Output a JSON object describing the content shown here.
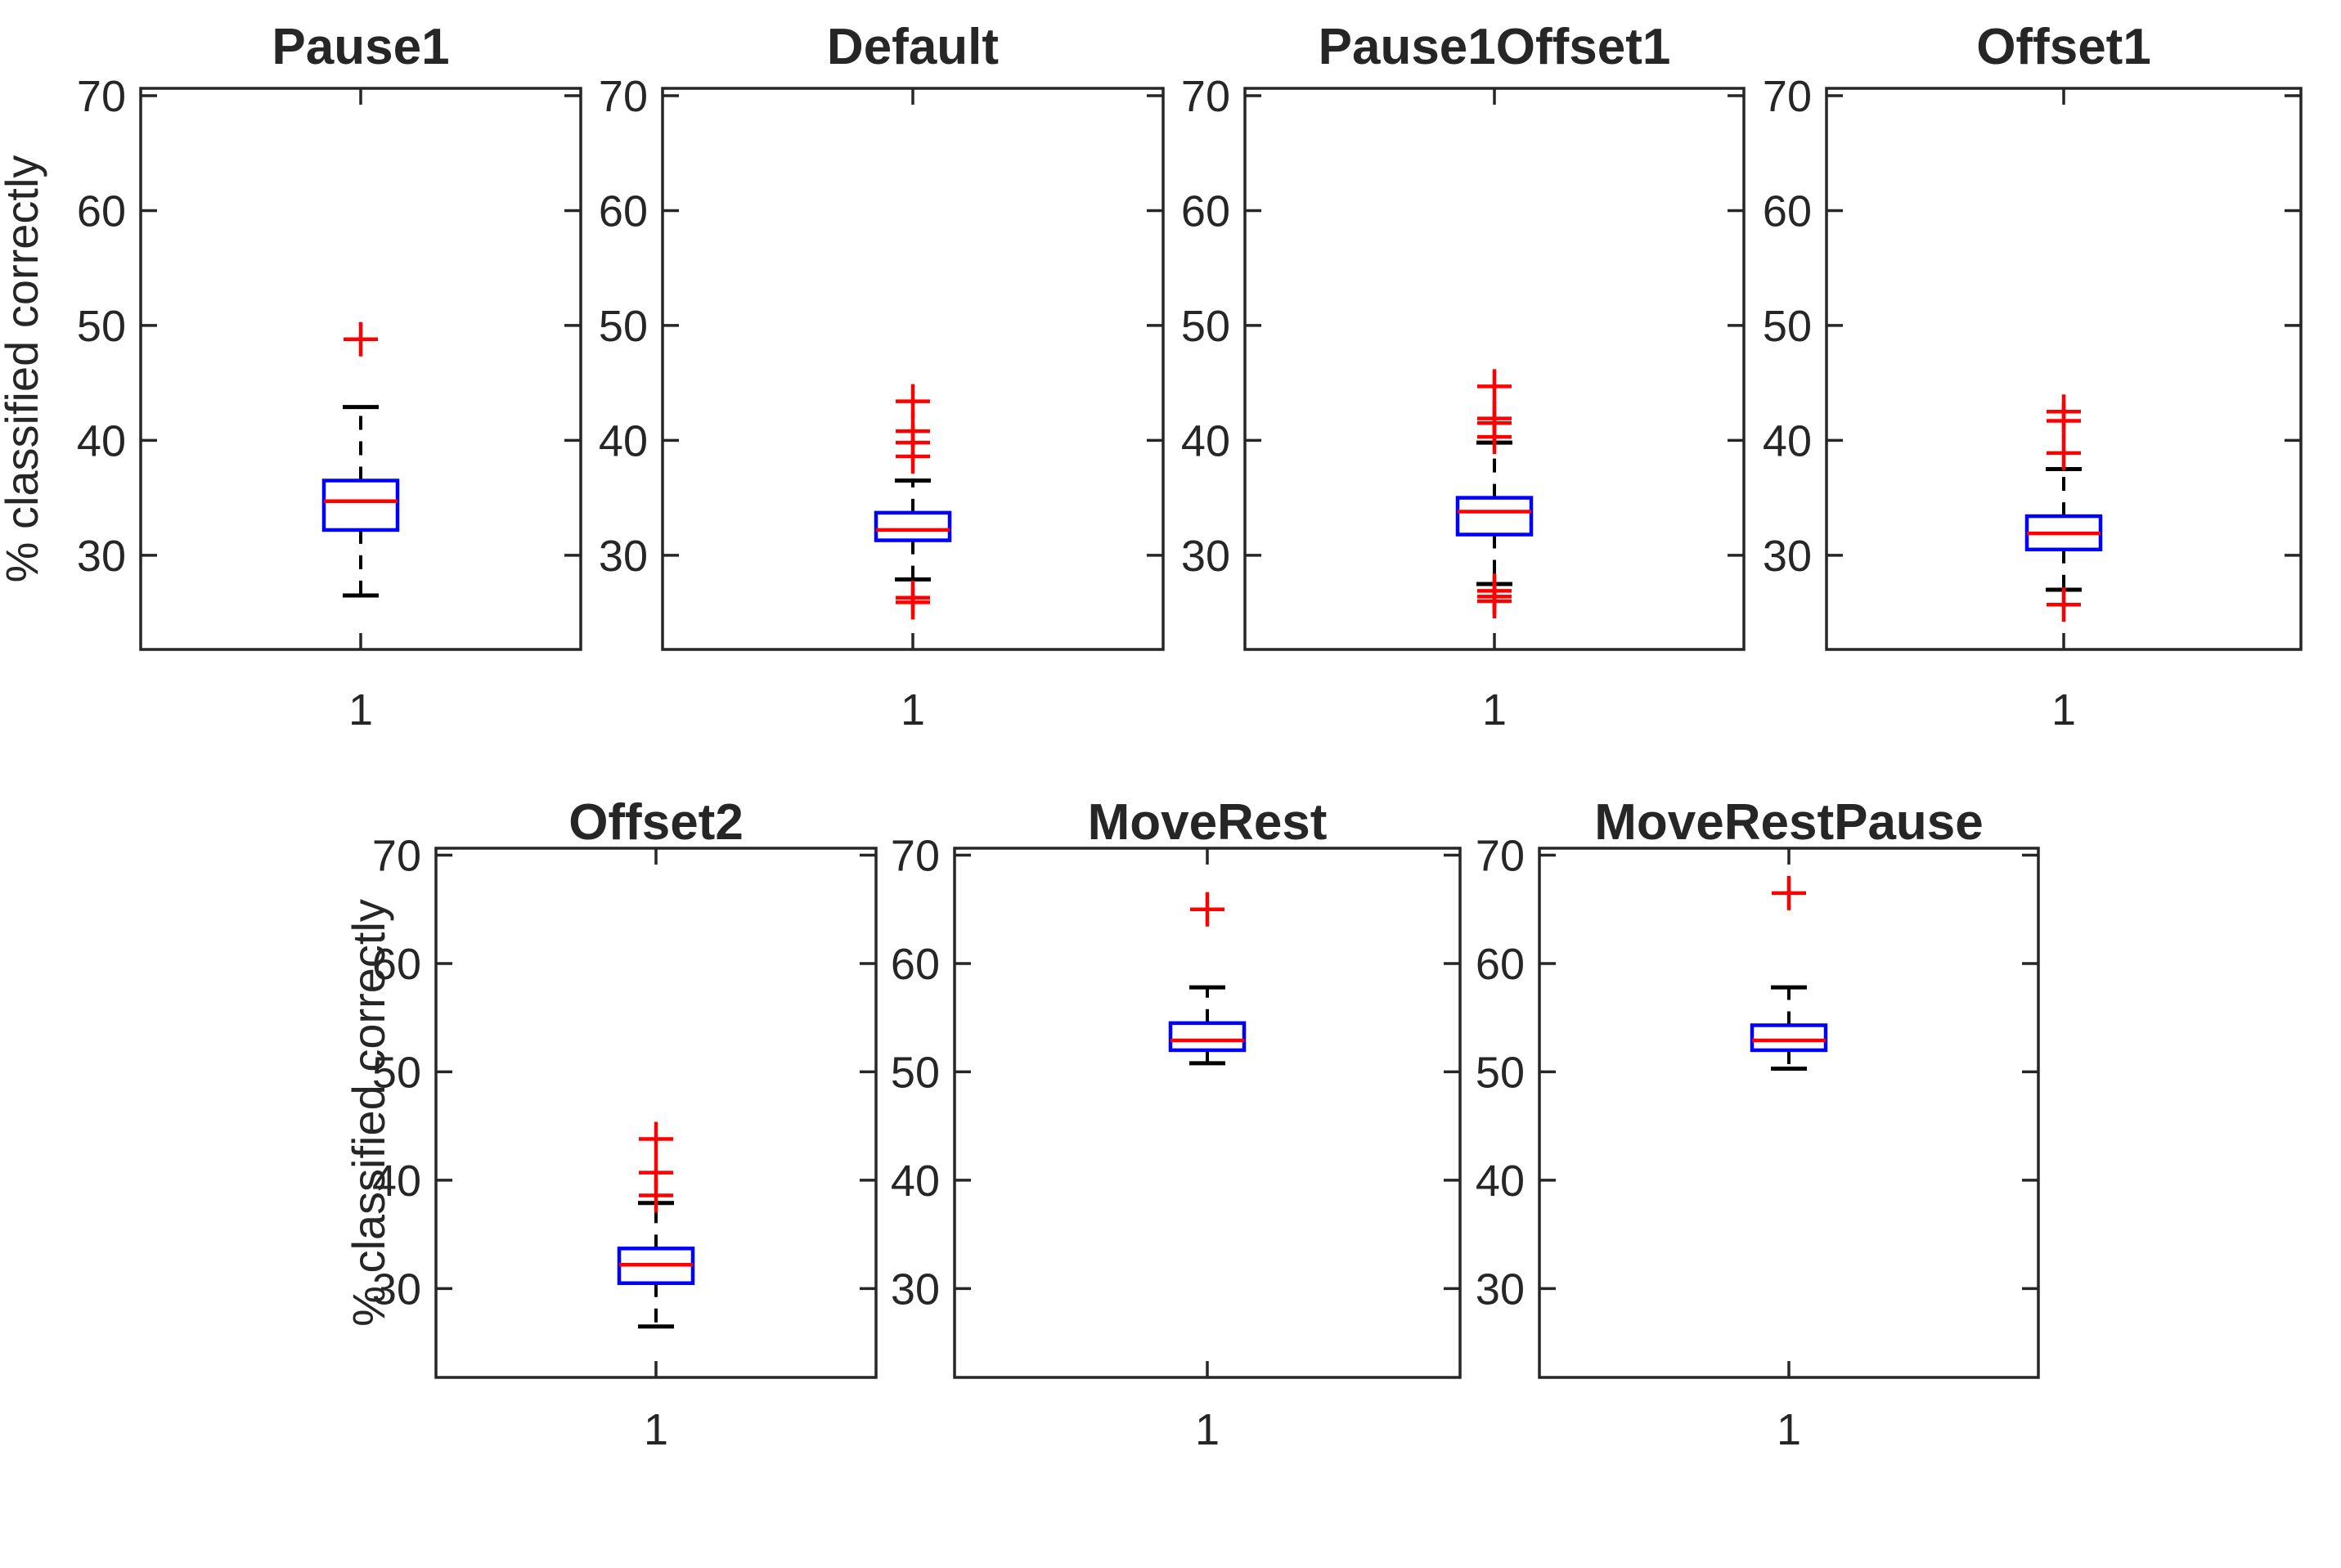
{
  "figure": {
    "background": "#ffffff",
    "ylabel": "% classified correctly",
    "x_tick_label": "1"
  },
  "colors": {
    "box": "#0000ff",
    "median": "#ff0000",
    "outlier": "#ff0000",
    "whisker": "#000000",
    "axis": "#262626",
    "background": "#ffffff"
  },
  "chart_data": {
    "type": "boxplot",
    "title": "",
    "ylabel": "% classified correctly",
    "xlabel": "",
    "x_tick_label": "1",
    "yticks": [
      30,
      40,
      50,
      60,
      70
    ],
    "ylim": [
      21.8,
      70.64
    ],
    "grid": false,
    "legend": null,
    "layout_note": "two rows: 4 subplots top, 3 subplots bottom",
    "subplots": [
      {
        "title": "Pause1",
        "row": 0,
        "median": 34.7,
        "q1": 32.2,
        "q3": 36.5,
        "whisker_low": 26.5,
        "whisker_high": 42.9,
        "outliers_high": [
          48.8
        ],
        "outliers_low": [],
        "has_ylabel": true
      },
      {
        "title": "Default",
        "row": 0,
        "median": 32.2,
        "q1": 31.3,
        "q3": 33.7,
        "whisker_low": 27.9,
        "whisker_high": 36.5,
        "outliers_high": [
          43.4,
          40.8,
          39.8,
          38.6
        ],
        "outliers_low": [
          26.3,
          25.9
        ],
        "has_ylabel": false
      },
      {
        "title": "Pause1Offset1",
        "row": 0,
        "median": 33.8,
        "q1": 31.8,
        "q3": 35.0,
        "whisker_low": 27.5,
        "whisker_high": 39.8,
        "outliers_high": [
          44.7,
          41.9,
          41.5,
          40.3
        ],
        "outliers_low": [
          26.9,
          26.4,
          26.0
        ],
        "has_ylabel": false
      },
      {
        "title": "Offset1",
        "row": 0,
        "median": 31.9,
        "q1": 30.5,
        "q3": 33.4,
        "whisker_low": 27.0,
        "whisker_high": 37.5,
        "outliers_high": [
          42.5,
          41.7,
          38.9
        ],
        "outliers_low": [
          25.7
        ],
        "has_ylabel": false
      },
      {
        "title": "Offset2",
        "row": 1,
        "median": 32.2,
        "q1": 30.5,
        "q3": 33.7,
        "whisker_low": 26.5,
        "whisker_high": 37.9,
        "outliers_high": [
          43.8,
          40.7,
          38.6
        ],
        "outliers_low": [],
        "has_ylabel": true
      },
      {
        "title": "MoveRest",
        "row": 1,
        "median": 52.9,
        "q1": 52.0,
        "q3": 54.5,
        "whisker_low": 50.8,
        "whisker_high": 57.8,
        "outliers_high": [
          65.0
        ],
        "outliers_low": [],
        "has_ylabel": false
      },
      {
        "title": "MoveRestPause",
        "row": 1,
        "median": 52.9,
        "q1": 52.0,
        "q3": 54.3,
        "whisker_low": 50.3,
        "whisker_high": 57.8,
        "outliers_high": [
          66.5
        ],
        "outliers_low": [],
        "has_ylabel": false
      }
    ]
  }
}
